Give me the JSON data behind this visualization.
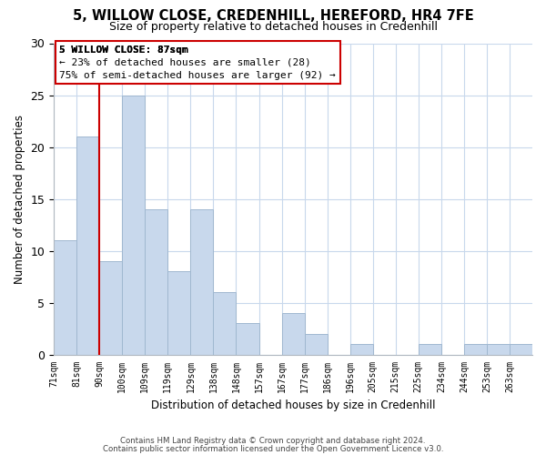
{
  "title": "5, WILLOW CLOSE, CREDENHILL, HEREFORD, HR4 7FE",
  "subtitle": "Size of property relative to detached houses in Credenhill",
  "xlabel": "Distribution of detached houses by size in Credenhill",
  "ylabel": "Number of detached properties",
  "bar_labels": [
    "71sqm",
    "81sqm",
    "90sqm",
    "100sqm",
    "109sqm",
    "119sqm",
    "129sqm",
    "138sqm",
    "148sqm",
    "157sqm",
    "167sqm",
    "177sqm",
    "186sqm",
    "196sqm",
    "205sqm",
    "215sqm",
    "225sqm",
    "234sqm",
    "244sqm",
    "253sqm",
    "263sqm"
  ],
  "bar_values": [
    11,
    21,
    9,
    25,
    14,
    8,
    14,
    6,
    3,
    0,
    4,
    2,
    0,
    1,
    0,
    0,
    1,
    0,
    1,
    1,
    1
  ],
  "bar_color": "#c8d8ec",
  "bar_edge_color": "#a0b8d0",
  "vline_x": 2,
  "vline_color": "#cc0000",
  "ylim": [
    0,
    30
  ],
  "yticks": [
    0,
    5,
    10,
    15,
    20,
    25,
    30
  ],
  "annotation_title": "5 WILLOW CLOSE: 87sqm",
  "annotation_line1": "← 23% of detached houses are smaller (28)",
  "annotation_line2": "75% of semi-detached houses are larger (92) →",
  "annotation_box_color": "#ffffff",
  "annotation_box_edge": "#cc0000",
  "footer_line1": "Contains HM Land Registry data © Crown copyright and database right 2024.",
  "footer_line2": "Contains public sector information licensed under the Open Government Licence v3.0.",
  "background_color": "#ffffff",
  "grid_color": "#c8d8ec"
}
